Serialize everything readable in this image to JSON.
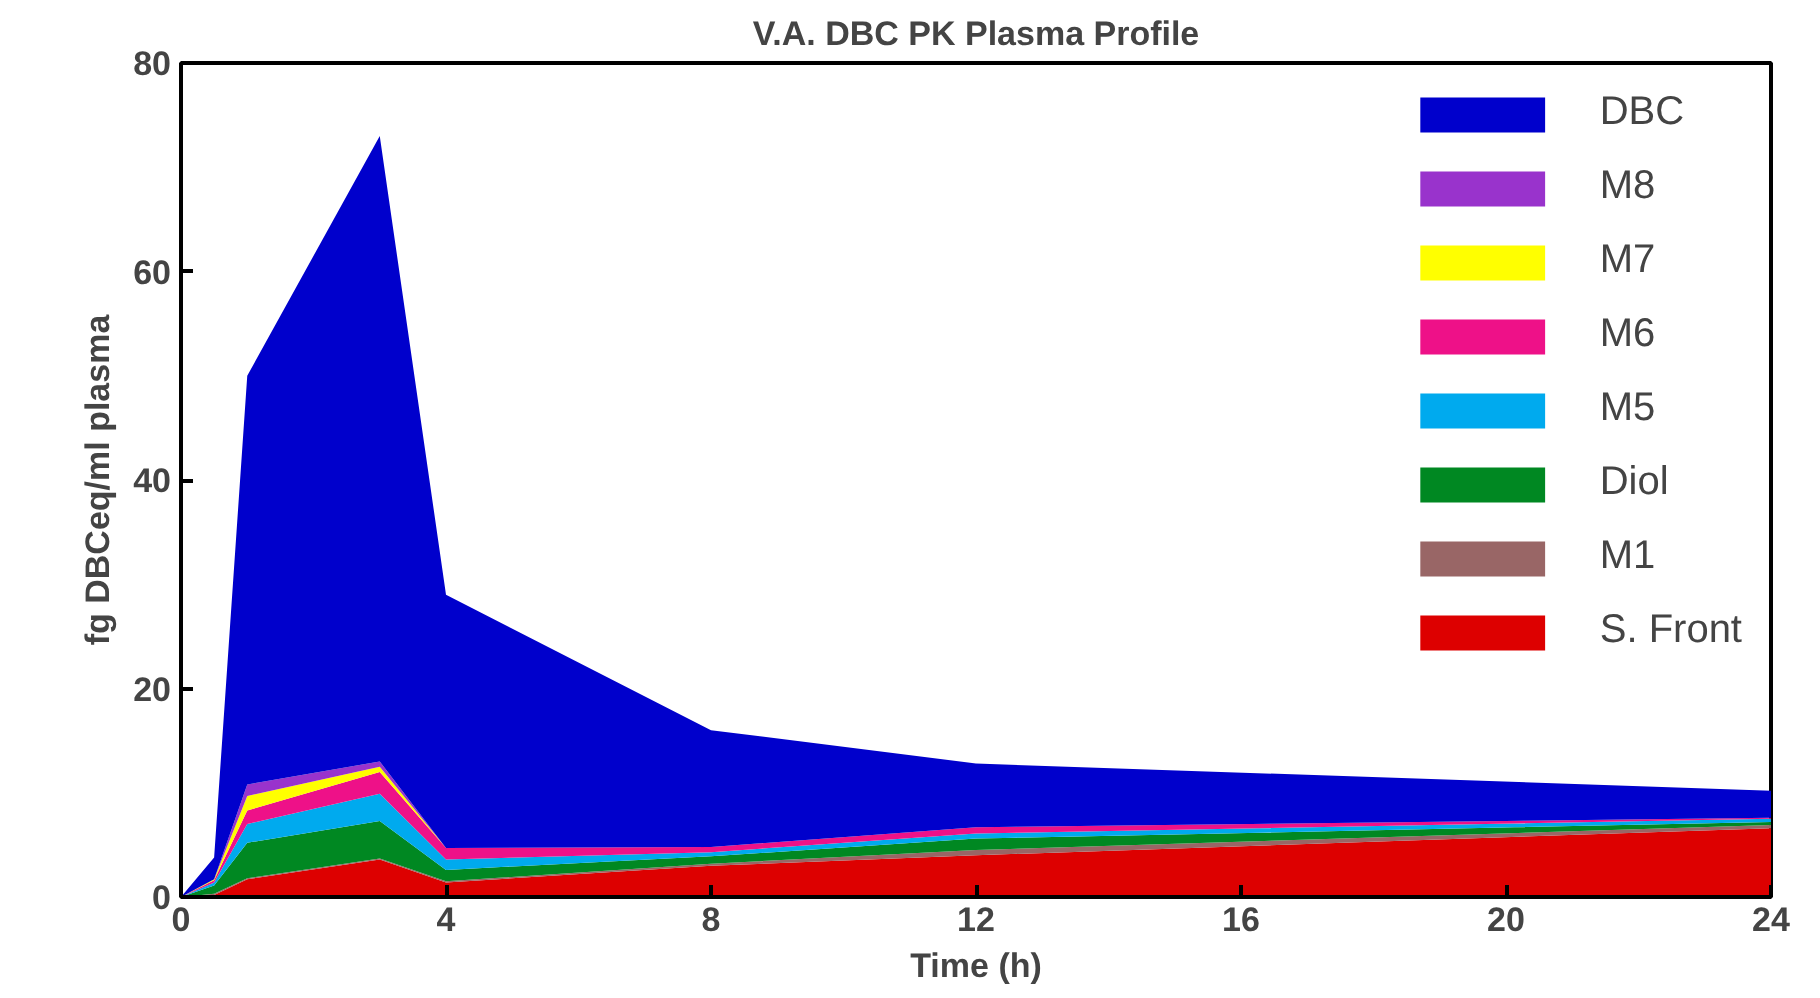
{
  "chart_data": {
    "type": "area",
    "stacked": true,
    "title": "V.A. DBC PK Plasma Profile",
    "xlabel": "Time (h)",
    "ylabel": "fg DBCeq/ml plasma",
    "x": [
      0,
      0.5,
      1,
      3,
      4,
      8,
      12,
      24
    ],
    "xlim": [
      0,
      24
    ],
    "xticks": [
      0,
      4,
      8,
      12,
      16,
      20,
      24
    ],
    "ylim": [
      0,
      80
    ],
    "yticks": [
      0,
      20,
      40,
      60,
      80
    ],
    "grid": false,
    "legend": "top right",
    "series": [
      {
        "name": "S. Front",
        "color": "#dd0000",
        "values": [
          0,
          0.2,
          1.7,
          3.6,
          1.4,
          3.0,
          4.0,
          6.6
        ]
      },
      {
        "name": "M1",
        "color": "#996666",
        "values": [
          0,
          0.1,
          0.1,
          0.1,
          0.1,
          0.2,
          0.5,
          0.3
        ]
      },
      {
        "name": "Diol",
        "color": "#008822",
        "values": [
          0,
          0.8,
          3.4,
          3.6,
          1.1,
          0.7,
          1.1,
          0.3
        ]
      },
      {
        "name": "M5",
        "color": "#00aaee",
        "values": [
          0,
          0.3,
          1.8,
          2.6,
          1.0,
          0.4,
          0.5,
          0.3
        ]
      },
      {
        "name": "M6",
        "color": "#ee1188",
        "values": [
          0,
          0.2,
          1.3,
          2.1,
          1.1,
          0.5,
          0.6,
          0.1
        ]
      },
      {
        "name": "M7",
        "color": "#ffff00",
        "values": [
          0,
          0.1,
          1.4,
          0.5,
          0,
          0,
          0,
          0
        ]
      },
      {
        "name": "M8",
        "color": "#9933cc",
        "values": [
          0,
          0,
          1.1,
          0.5,
          0,
          0,
          0,
          0
        ]
      },
      {
        "name": "DBC",
        "color": "#0000cc",
        "values": [
          0,
          2.1,
          39.2,
          60.0,
          24.3,
          11.2,
          6.1,
          2.6
        ]
      }
    ]
  }
}
